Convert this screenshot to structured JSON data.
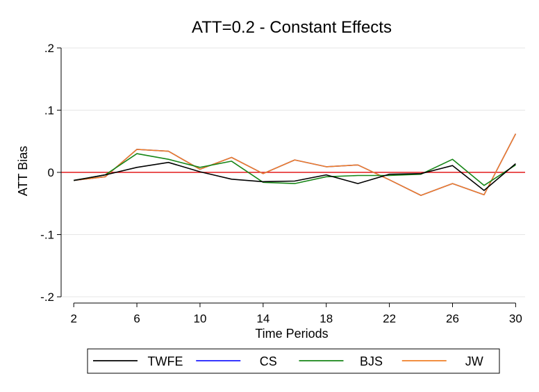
{
  "chart_data": {
    "type": "line",
    "title": "ATT=0.2 - Constant Effects",
    "xlabel": "Time Periods",
    "ylabel": "ATT Bias",
    "xlim": [
      1.2,
      30.6
    ],
    "ylim": [
      -0.21,
      0.21
    ],
    "xticks": [
      2,
      6,
      10,
      14,
      18,
      22,
      26,
      30
    ],
    "xtick_labels": [
      "2",
      "6",
      "10",
      "14",
      "18",
      "22",
      "26",
      "30"
    ],
    "yticks": [
      -0.2,
      -0.1,
      0,
      0.1,
      0.2
    ],
    "ytick_labels": [
      "-.2",
      "-.1",
      "0",
      ".1",
      ".2"
    ],
    "grid": "horizontal",
    "reference_line": {
      "y": 0,
      "color": "#e41a1c"
    },
    "legend_position": "bottom",
    "x": [
      2,
      4,
      6,
      8,
      10,
      12,
      14,
      16,
      18,
      20,
      22,
      24,
      26,
      28,
      30
    ],
    "series": [
      {
        "name": "TWFE",
        "color": "#000000",
        "values": [
          -0.013,
          -0.004,
          0.008,
          0.016,
          0.001,
          -0.011,
          -0.015,
          -0.014,
          -0.004,
          -0.018,
          -0.003,
          -0.002,
          0.011,
          -0.029,
          0.014
        ]
      },
      {
        "name": "CS",
        "color": "#1a1aff",
        "values": [
          -0.013,
          -0.007,
          0.037,
          0.034,
          0.005,
          0.024,
          -0.002,
          0.02,
          0.009,
          0.012,
          -0.012,
          -0.037,
          -0.018,
          -0.036,
          0.062
        ]
      },
      {
        "name": "BJS",
        "color": "#168516",
        "values": [
          -0.013,
          -0.004,
          0.03,
          0.021,
          0.008,
          0.018,
          -0.016,
          -0.018,
          -0.007,
          -0.005,
          -0.005,
          -0.003,
          0.021,
          -0.021,
          0.012
        ]
      },
      {
        "name": "JW",
        "color": "#f07f26",
        "values": [
          -0.013,
          -0.007,
          0.037,
          0.034,
          0.005,
          0.024,
          -0.002,
          0.02,
          0.009,
          0.012,
          -0.012,
          -0.037,
          -0.018,
          -0.036,
          0.062
        ]
      }
    ]
  }
}
